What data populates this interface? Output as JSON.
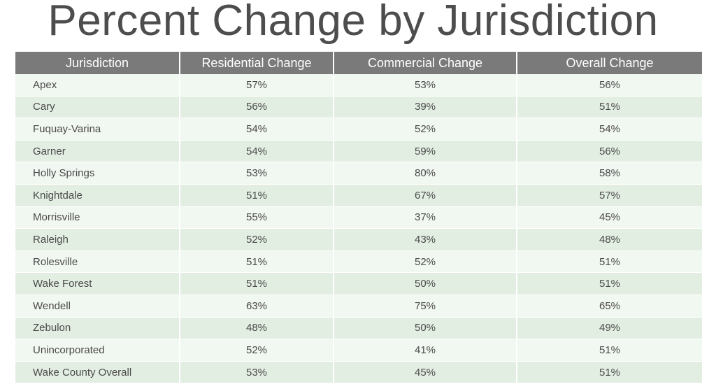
{
  "title": "Percent Change by Jurisdiction",
  "table": {
    "headers": [
      "Jurisdiction",
      "Residential Change",
      "Commercial Change",
      "Overall Change"
    ],
    "rows": [
      [
        "Apex",
        "57%",
        "53%",
        "56%"
      ],
      [
        "Cary",
        "56%",
        "39%",
        "51%"
      ],
      [
        "Fuquay-Varina",
        "54%",
        "52%",
        "54%"
      ],
      [
        "Garner",
        "54%",
        "59%",
        "56%"
      ],
      [
        "Holly Springs",
        "53%",
        "80%",
        "58%"
      ],
      [
        "Knightdale",
        "51%",
        "67%",
        "57%"
      ],
      [
        "Morrisville",
        "55%",
        "37%",
        "45%"
      ],
      [
        "Raleigh",
        "52%",
        "43%",
        "48%"
      ],
      [
        "Rolesville",
        "51%",
        "52%",
        "51%"
      ],
      [
        "Wake Forest",
        "51%",
        "50%",
        "51%"
      ],
      [
        "Wendell",
        "63%",
        "75%",
        "65%"
      ],
      [
        "Zebulon",
        "48%",
        "50%",
        "49%"
      ],
      [
        "Unincorporated",
        "52%",
        "41%",
        "51%"
      ],
      [
        "Wake County Overall",
        "53%",
        "45%",
        "51%"
      ]
    ]
  },
  "colors": {
    "header_bg": "#7a7a7a",
    "row_light": "#f1f7f1",
    "row_dark": "#e3eee3",
    "text": "#4a4a4a"
  }
}
